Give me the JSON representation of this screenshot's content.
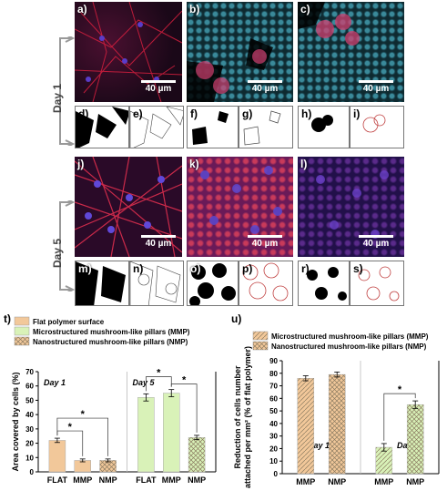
{
  "figure": {
    "day_labels": [
      "Day 1",
      "Day 5"
    ],
    "scale_bar": "40 µm",
    "panel_letters": [
      "a)",
      "b)",
      "c)",
      "d)",
      "e)",
      "f)",
      "g)",
      "h)",
      "i)",
      "j)",
      "k)",
      "l)",
      "m)",
      "n)",
      "o)",
      "p)",
      "r)",
      "s)"
    ]
  },
  "chart_data": [
    {
      "panel": "t)",
      "type": "bar",
      "ylabel": "Area covered by cells (%)",
      "ylim": [
        0,
        70
      ],
      "yticks": [
        0,
        10,
        20,
        30,
        40,
        50,
        60,
        70
      ],
      "legend": [
        {
          "name": "Flat polymer surface",
          "color": "#f2c89a",
          "pattern": "solid"
        },
        {
          "name": "Microstructured mushroom-like pillars (MMP)",
          "color": "#d9f2b8",
          "pattern": "solid"
        },
        {
          "name": "Nanostructured mushroom-like pillars (NMP)",
          "color": "#f2c89a",
          "pattern": "crosshatch"
        }
      ],
      "groups": [
        {
          "label": "Day 1",
          "categories": [
            "FLAT",
            "MMP",
            "NMP"
          ],
          "values": [
            22,
            8,
            8
          ],
          "errors": [
            1.5,
            1,
            1
          ],
          "color": "#f2c89a"
        },
        {
          "label": "Day 5",
          "categories": [
            "FLAT",
            "MMP",
            "NMP"
          ],
          "values": [
            52,
            55,
            24
          ],
          "errors": [
            2.5,
            2.5,
            1.5
          ],
          "color": "#d9f2b8"
        }
      ],
      "significance": "*"
    },
    {
      "panel": "u)",
      "type": "bar",
      "ylabel": "Reduction of cells number attached per mm² (% of flat polymer)",
      "ylim": [
        0,
        90
      ],
      "yticks": [
        0,
        10,
        20,
        30,
        40,
        50,
        60,
        70,
        80,
        90
      ],
      "legend": [
        {
          "name": "Microstructured mushroom-like pillars (MMP)",
          "color": "#f2c89a",
          "pattern": "diagonal"
        },
        {
          "name": "Nanostructured mushroom-like pillars (NMP)",
          "color": "#f2c89a",
          "pattern": "crosshatch"
        }
      ],
      "groups": [
        {
          "label": "Day 1",
          "categories": [
            "MMP",
            "NMP"
          ],
          "values": [
            76,
            79
          ],
          "errors": [
            2,
            2
          ],
          "color": "#f2c89a"
        },
        {
          "label": "Day 5",
          "categories": [
            "MMP",
            "NMP"
          ],
          "values": [
            21,
            55
          ],
          "errors": [
            3,
            3
          ],
          "color": "#d9f2b8"
        }
      ],
      "significance": "*"
    }
  ]
}
